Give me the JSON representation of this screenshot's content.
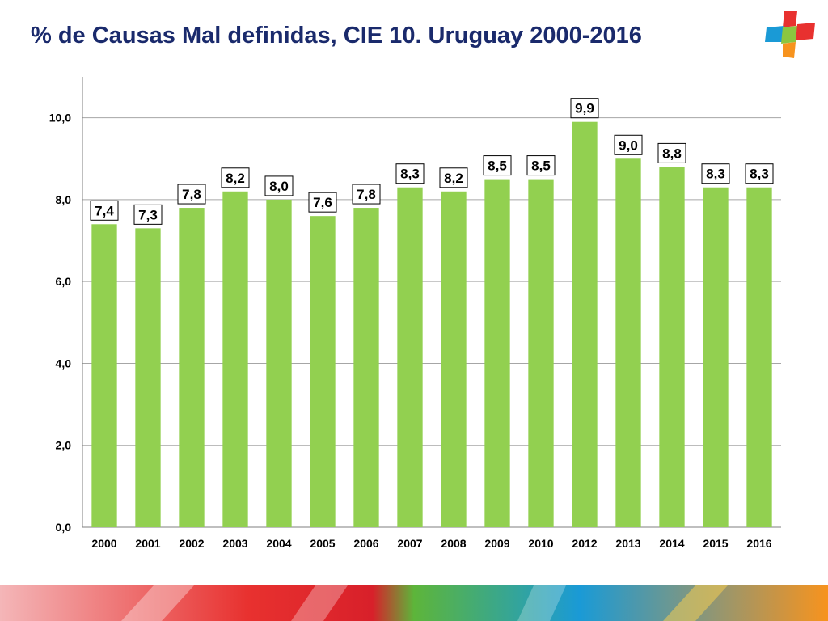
{
  "title": "% de Causas Mal definidas, CIE 10. Uruguay 2000-2016",
  "logo": {
    "icon": "medical-cross-logo",
    "colors": [
      "#e8312f",
      "#1a9ad6",
      "#8cc63f",
      "#f7931e"
    ]
  },
  "colors": {
    "bar": "#92d050",
    "title": "#1a2a6c",
    "grid": "#a6a6a6"
  },
  "chart_data": {
    "type": "bar",
    "title": "",
    "xlabel": "",
    "ylabel": "",
    "categories": [
      "2000",
      "2001",
      "2002",
      "2003",
      "2004",
      "2005",
      "2006",
      "2007",
      "2008",
      "2009",
      "2010",
      "2012",
      "2013",
      "2014",
      "2015",
      "2016"
    ],
    "values": [
      7.4,
      7.3,
      7.8,
      8.2,
      8.0,
      7.6,
      7.8,
      8.3,
      8.2,
      8.5,
      8.5,
      9.9,
      9.0,
      8.8,
      8.3,
      8.3
    ],
    "data_labels": [
      "7,4",
      "7,3",
      "7,8",
      "8,2",
      "8,0",
      "7,6",
      "7,8",
      "8,3",
      "8,2",
      "8,5",
      "8,5",
      "9,9",
      "9,0",
      "8,8",
      "8,3",
      "8,3"
    ],
    "ylim": [
      0,
      11
    ],
    "yticks": [
      0,
      2,
      4,
      6,
      8,
      10
    ],
    "ytick_labels": [
      "0,0",
      "2,0",
      "4,0",
      "6,0",
      "8,0",
      "10,0"
    ],
    "grid": true,
    "legend": "none"
  }
}
